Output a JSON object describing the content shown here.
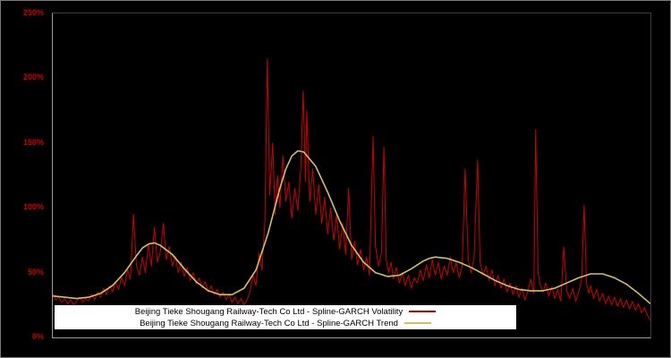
{
  "colors": {
    "background": "#000000",
    "axis": "#9a9a9a",
    "tick_text": "#cc0000",
    "volatility_line": "#cc0000",
    "trend_line": "#cfc25f",
    "legend_background": "#ffffff",
    "legend_text": "#000000"
  },
  "legend": {
    "items": [
      {
        "label": "Beijing Tieke Shougang Railway-Tech Co Ltd - Spline-GARCH Volatility",
        "color": "#cc0000"
      },
      {
        "label": "Beijing Tieke Shougang Railway-Tech Co Ltd - Spline-GARCH Trend",
        "color": "#cfc25f"
      }
    ]
  },
  "chart_data": {
    "type": "line",
    "title": "",
    "xlabel": "",
    "ylabel": "",
    "grid": false,
    "legend_position": "bottom-center",
    "xlim": [
      0,
      1
    ],
    "ylim": [
      0,
      250
    ],
    "y_ticks": [
      {
        "label": "0%",
        "value": 0
      },
      {
        "label": "50%",
        "value": 50
      },
      {
        "label": "100%",
        "value": 100
      },
      {
        "label": "150%",
        "value": 150
      },
      {
        "label": "200%",
        "value": 200
      },
      {
        "label": "250%",
        "value": 250
      }
    ],
    "series": [
      {
        "name": "Beijing Tieke Shougang Railway-Tech Co Ltd - Spline-GARCH Volatility",
        "short": "volatility",
        "color": "#cc0000",
        "stroke_width": 1,
        "points": [
          [
            0.0,
            34
          ],
          [
            0.005,
            29
          ],
          [
            0.01,
            31
          ],
          [
            0.015,
            27
          ],
          [
            0.02,
            30
          ],
          [
            0.025,
            26
          ],
          [
            0.03,
            29
          ],
          [
            0.035,
            25
          ],
          [
            0.04,
            28
          ],
          [
            0.045,
            31
          ],
          [
            0.05,
            27
          ],
          [
            0.055,
            30
          ],
          [
            0.06,
            28
          ],
          [
            0.065,
            33
          ],
          [
            0.07,
            29
          ],
          [
            0.075,
            35
          ],
          [
            0.08,
            31
          ],
          [
            0.085,
            38
          ],
          [
            0.09,
            33
          ],
          [
            0.095,
            40
          ],
          [
            0.1,
            35
          ],
          [
            0.105,
            43
          ],
          [
            0.11,
            37
          ],
          [
            0.115,
            46
          ],
          [
            0.12,
            40
          ],
          [
            0.125,
            52
          ],
          [
            0.13,
            45
          ],
          [
            0.135,
            95
          ],
          [
            0.14,
            55
          ],
          [
            0.145,
            48
          ],
          [
            0.15,
            62
          ],
          [
            0.155,
            50
          ],
          [
            0.16,
            72
          ],
          [
            0.165,
            55
          ],
          [
            0.17,
            85
          ],
          [
            0.175,
            58
          ],
          [
            0.18,
            66
          ],
          [
            0.185,
            88
          ],
          [
            0.19,
            60
          ],
          [
            0.195,
            70
          ],
          [
            0.2,
            55
          ],
          [
            0.205,
            63
          ],
          [
            0.21,
            50
          ],
          [
            0.215,
            58
          ],
          [
            0.22,
            47
          ],
          [
            0.225,
            54
          ],
          [
            0.23,
            44
          ],
          [
            0.235,
            50
          ],
          [
            0.24,
            41
          ],
          [
            0.245,
            46
          ],
          [
            0.25,
            38
          ],
          [
            0.255,
            43
          ],
          [
            0.26,
            35
          ],
          [
            0.265,
            40
          ],
          [
            0.27,
            33
          ],
          [
            0.275,
            37
          ],
          [
            0.28,
            31
          ],
          [
            0.285,
            35
          ],
          [
            0.29,
            29
          ],
          [
            0.295,
            33
          ],
          [
            0.3,
            27
          ],
          [
            0.305,
            31
          ],
          [
            0.31,
            26
          ],
          [
            0.315,
            30
          ],
          [
            0.32,
            25
          ],
          [
            0.325,
            29
          ],
          [
            0.33,
            35
          ],
          [
            0.335,
            48
          ],
          [
            0.34,
            40
          ],
          [
            0.345,
            65
          ],
          [
            0.35,
            52
          ],
          [
            0.355,
            90
          ],
          [
            0.359,
            215
          ],
          [
            0.363,
            110
          ],
          [
            0.368,
            150
          ],
          [
            0.372,
            95
          ],
          [
            0.376,
            125
          ],
          [
            0.38,
            100
          ],
          [
            0.385,
            140
          ],
          [
            0.39,
            105
          ],
          [
            0.395,
            120
          ],
          [
            0.4,
            92
          ],
          [
            0.405,
            115
          ],
          [
            0.41,
            98
          ],
          [
            0.415,
            130
          ],
          [
            0.419,
            190
          ],
          [
            0.423,
            120
          ],
          [
            0.425,
            175
          ],
          [
            0.43,
            105
          ],
          [
            0.435,
            130
          ],
          [
            0.44,
            95
          ],
          [
            0.445,
            118
          ],
          [
            0.45,
            88
          ],
          [
            0.455,
            108
          ],
          [
            0.46,
            80
          ],
          [
            0.465,
            100
          ],
          [
            0.47,
            75
          ],
          [
            0.475,
            95
          ],
          [
            0.48,
            68
          ],
          [
            0.485,
            88
          ],
          [
            0.49,
            64
          ],
          [
            0.495,
            115
          ],
          [
            0.5,
            60
          ],
          [
            0.505,
            74
          ],
          [
            0.51,
            56
          ],
          [
            0.515,
            68
          ],
          [
            0.52,
            52
          ],
          [
            0.525,
            62
          ],
          [
            0.53,
            48
          ],
          [
            0.536,
            155
          ],
          [
            0.54,
            70
          ],
          [
            0.545,
            55
          ],
          [
            0.55,
            65
          ],
          [
            0.554,
            147
          ],
          [
            0.558,
            60
          ],
          [
            0.562,
            50
          ],
          [
            0.566,
            58
          ],
          [
            0.57,
            45
          ],
          [
            0.575,
            54
          ],
          [
            0.58,
            42
          ],
          [
            0.585,
            50
          ],
          [
            0.59,
            40
          ],
          [
            0.595,
            48
          ],
          [
            0.6,
            38
          ],
          [
            0.605,
            46
          ],
          [
            0.61,
            42
          ],
          [
            0.615,
            52
          ],
          [
            0.62,
            44
          ],
          [
            0.625,
            56
          ],
          [
            0.63,
            46
          ],
          [
            0.635,
            60
          ],
          [
            0.64,
            48
          ],
          [
            0.645,
            58
          ],
          [
            0.65,
            45
          ],
          [
            0.655,
            55
          ],
          [
            0.66,
            48
          ],
          [
            0.665,
            62
          ],
          [
            0.67,
            50
          ],
          [
            0.675,
            58
          ],
          [
            0.68,
            46
          ],
          [
            0.685,
            55
          ],
          [
            0.69,
            130
          ],
          [
            0.695,
            60
          ],
          [
            0.7,
            50
          ],
          [
            0.705,
            62
          ],
          [
            0.711,
            137
          ],
          [
            0.715,
            58
          ],
          [
            0.72,
            48
          ],
          [
            0.725,
            55
          ],
          [
            0.73,
            44
          ],
          [
            0.735,
            52
          ],
          [
            0.74,
            40
          ],
          [
            0.745,
            48
          ],
          [
            0.75,
            38
          ],
          [
            0.755,
            45
          ],
          [
            0.76,
            35
          ],
          [
            0.765,
            42
          ],
          [
            0.77,
            33
          ],
          [
            0.775,
            40
          ],
          [
            0.78,
            31
          ],
          [
            0.785,
            38
          ],
          [
            0.79,
            29
          ],
          [
            0.795,
            36
          ],
          [
            0.8,
            45
          ],
          [
            0.805,
            34
          ],
          [
            0.808,
            160
          ],
          [
            0.812,
            50
          ],
          [
            0.816,
            40
          ],
          [
            0.82,
            35
          ],
          [
            0.825,
            42
          ],
          [
            0.83,
            32
          ],
          [
            0.835,
            39
          ],
          [
            0.84,
            30
          ],
          [
            0.845,
            37
          ],
          [
            0.85,
            28
          ],
          [
            0.855,
            70
          ],
          [
            0.86,
            36
          ],
          [
            0.865,
            30
          ],
          [
            0.87,
            38
          ],
          [
            0.875,
            28
          ],
          [
            0.88,
            35
          ],
          [
            0.885,
            45
          ],
          [
            0.889,
            102
          ],
          [
            0.893,
            42
          ],
          [
            0.897,
            34
          ],
          [
            0.9,
            40
          ],
          [
            0.905,
            30
          ],
          [
            0.91,
            37
          ],
          [
            0.915,
            28
          ],
          [
            0.92,
            34
          ],
          [
            0.925,
            26
          ],
          [
            0.93,
            32
          ],
          [
            0.935,
            25
          ],
          [
            0.94,
            31
          ],
          [
            0.945,
            24
          ],
          [
            0.95,
            30
          ],
          [
            0.955,
            23
          ],
          [
            0.96,
            29
          ],
          [
            0.965,
            22
          ],
          [
            0.97,
            28
          ],
          [
            0.975,
            21
          ],
          [
            0.98,
            26
          ],
          [
            0.985,
            19
          ],
          [
            0.99,
            23
          ],
          [
            0.995,
            17
          ],
          [
            1.0,
            13
          ]
        ]
      },
      {
        "name": "Beijing Tieke Shougang Railway-Tech Co Ltd - Spline-GARCH Trend",
        "short": "trend",
        "color": "#cfc25f",
        "stroke_width": 1.6,
        "points": [
          [
            0.0,
            32
          ],
          [
            0.02,
            31
          ],
          [
            0.04,
            30
          ],
          [
            0.06,
            31
          ],
          [
            0.08,
            34
          ],
          [
            0.1,
            40
          ],
          [
            0.12,
            50
          ],
          [
            0.14,
            63
          ],
          [
            0.15,
            69
          ],
          [
            0.16,
            72
          ],
          [
            0.17,
            73
          ],
          [
            0.18,
            71
          ],
          [
            0.2,
            64
          ],
          [
            0.22,
            53
          ],
          [
            0.24,
            43
          ],
          [
            0.26,
            36
          ],
          [
            0.28,
            33
          ],
          [
            0.3,
            33
          ],
          [
            0.32,
            38
          ],
          [
            0.34,
            52
          ],
          [
            0.36,
            80
          ],
          [
            0.38,
            115
          ],
          [
            0.39,
            130
          ],
          [
            0.4,
            140
          ],
          [
            0.41,
            144
          ],
          [
            0.42,
            143
          ],
          [
            0.44,
            132
          ],
          [
            0.46,
            112
          ],
          [
            0.48,
            90
          ],
          [
            0.5,
            71
          ],
          [
            0.52,
            58
          ],
          [
            0.54,
            50
          ],
          [
            0.56,
            47
          ],
          [
            0.58,
            48
          ],
          [
            0.6,
            53
          ],
          [
            0.62,
            59
          ],
          [
            0.63,
            61
          ],
          [
            0.64,
            62
          ],
          [
            0.66,
            61
          ],
          [
            0.68,
            58
          ],
          [
            0.7,
            54
          ],
          [
            0.72,
            49
          ],
          [
            0.74,
            44
          ],
          [
            0.76,
            40
          ],
          [
            0.78,
            37
          ],
          [
            0.8,
            36
          ],
          [
            0.82,
            36
          ],
          [
            0.84,
            38
          ],
          [
            0.86,
            42
          ],
          [
            0.88,
            46
          ],
          [
            0.9,
            49
          ],
          [
            0.92,
            49
          ],
          [
            0.94,
            46
          ],
          [
            0.96,
            41
          ],
          [
            0.98,
            34
          ],
          [
            1.0,
            26
          ]
        ]
      }
    ]
  }
}
